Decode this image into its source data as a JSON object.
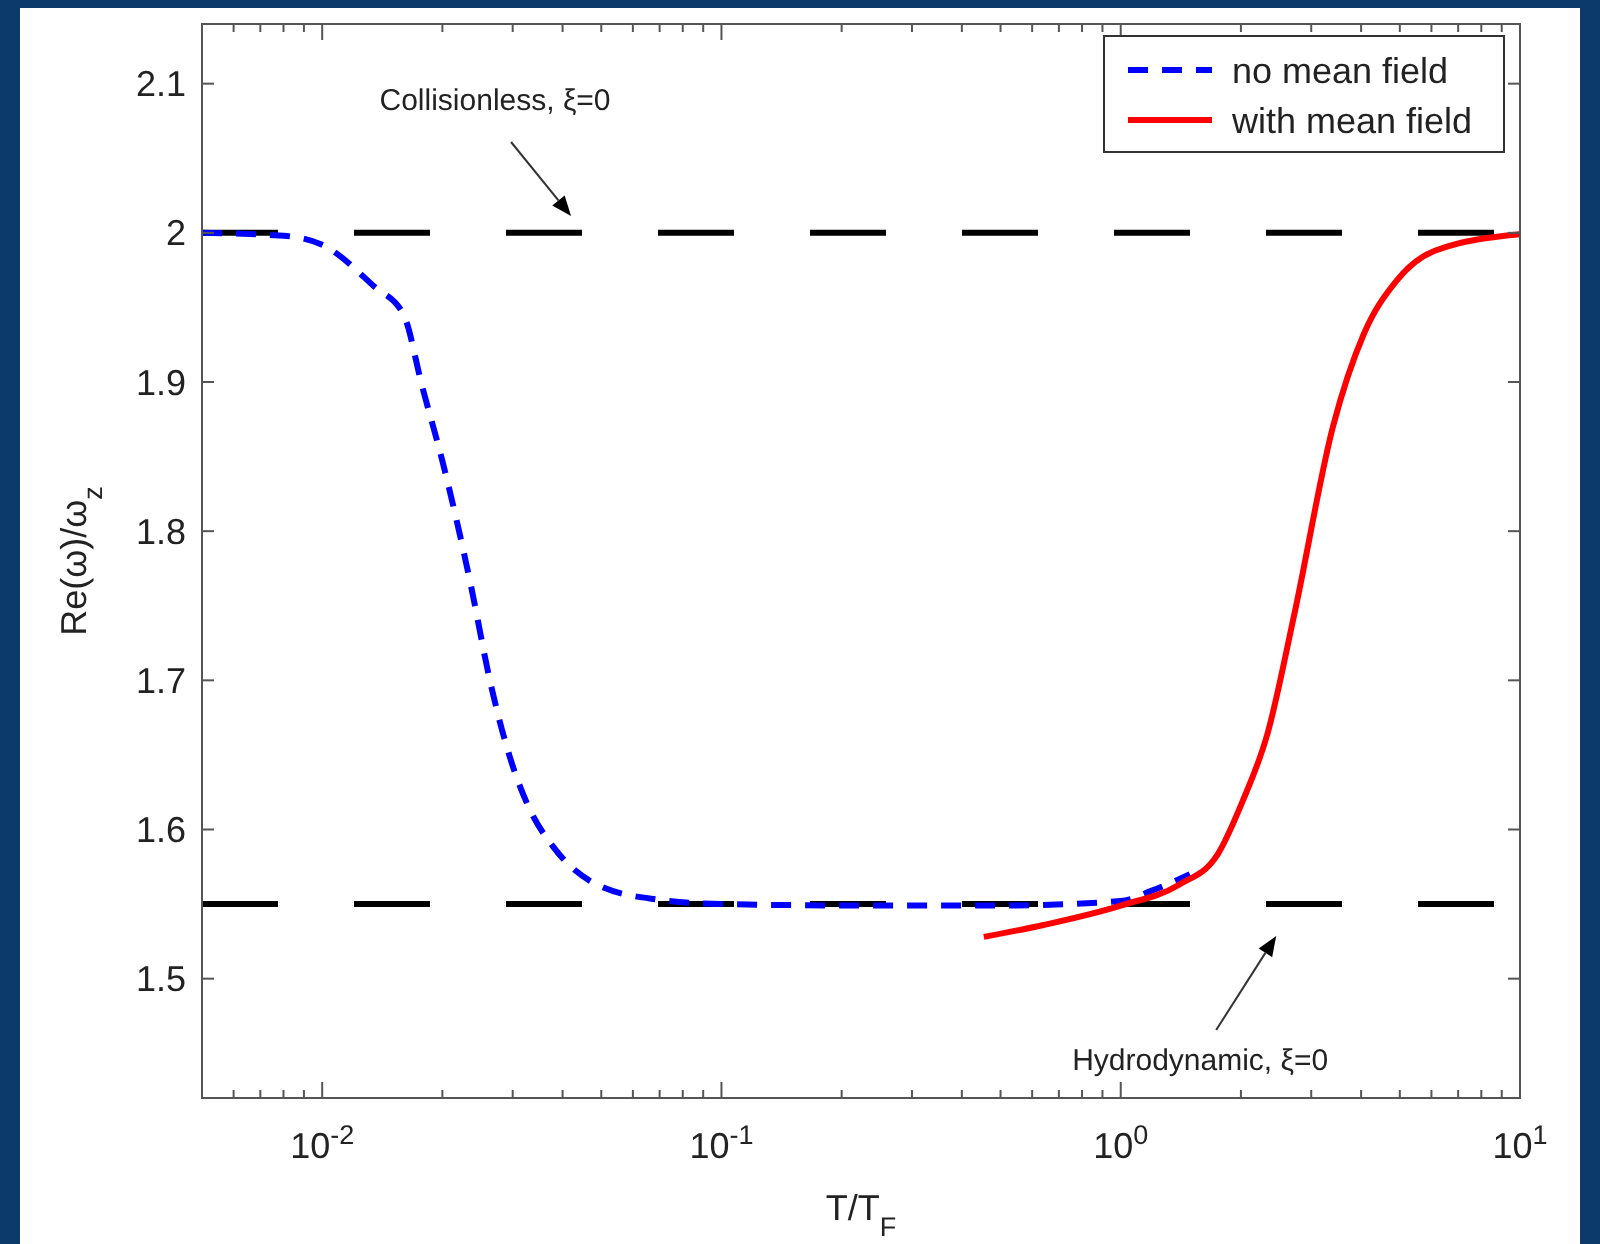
{
  "chart_data": {
    "type": "line",
    "xlabel": "T/T$_{F}$",
    "ylabel": "Re(ω)/ω$_{z}$",
    "log": "x",
    "xlim": [
      0.005,
      10
    ],
    "ylim": [
      1.42,
      2.14
    ],
    "xticks": [
      {
        "value": 0.01,
        "label": "10$^{-2}$"
      },
      {
        "value": 0.1,
        "label": "10$^{-1}$"
      },
      {
        "value": 1,
        "label": "10$^{0}$"
      },
      {
        "value": 10,
        "label": "10$^{1}$"
      }
    ],
    "yticks": [
      1.5,
      1.6,
      1.7,
      1.8,
      1.9,
      2,
      2.1
    ],
    "grid": false,
    "legend": "top right",
    "marker": "none",
    "series": [
      {
        "name": "no mean field",
        "color": "#0000ff",
        "line_style": "dashed",
        "x": [
          0.005,
          0.008,
          0.01,
          0.0135,
          0.016,
          0.0178,
          0.02,
          0.0236,
          0.0263,
          0.0294,
          0.0329,
          0.038,
          0.0497,
          0.0693,
          0.1,
          0.244,
          0.5,
          1,
          1.197,
          1.49
        ],
        "values": [
          2.0,
          1.998,
          1.992,
          1.964,
          1.945,
          1.897,
          1.847,
          1.763,
          1.7,
          1.65,
          1.615,
          1.588,
          1.562,
          1.553,
          1.55,
          1.549,
          1.549,
          1.552,
          1.559,
          1.57
        ]
      },
      {
        "name": "with mean field",
        "color": "#ff0000",
        "line_style": "solid",
        "x": [
          0.454,
          0.641,
          1,
          1.4,
          1.746,
          2.02,
          2.33,
          2.72,
          3.4,
          4.06,
          4.91,
          6.12,
          10
        ],
        "values": [
          1.528,
          1.536,
          1.549,
          1.563,
          1.583,
          1.619,
          1.664,
          1.744,
          1.87,
          1.932,
          1.968,
          1.988,
          1.999
        ]
      }
    ],
    "ref_lines": [
      {
        "axis": "y",
        "value": 2,
        "color": "#000000",
        "line_style": "dashed"
      },
      {
        "axis": "y",
        "value": 1.55,
        "color": "#000000",
        "line_style": "dashed"
      }
    ],
    "annotations": [
      "Collisionless, ξ=0",
      "Hydrodynamic, ξ=0"
    ]
  }
}
